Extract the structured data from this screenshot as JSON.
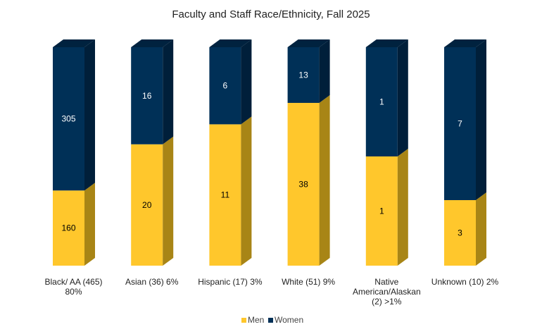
{
  "chart_data": {
    "type": "bar",
    "stacked": "100%",
    "three_d": true,
    "title": "Faculty and Staff Race/Ethnicity, Fall 2025",
    "categories": [
      [
        "Black/ AA (465)",
        "80%"
      ],
      [
        "Asian (36) 6%"
      ],
      [
        "Hispanic (17) 3%"
      ],
      [
        "White (51) 9%"
      ],
      [
        "Native",
        "American/Alaskan",
        "(2) >1%"
      ],
      [
        "Unknown (10) 2%"
      ]
    ],
    "series": [
      {
        "name": "Men",
        "values": [
          160,
          20,
          11,
          38,
          1,
          3
        ],
        "color": "#FFC72C",
        "side_color": "#A88516",
        "label_color": "#000000"
      },
      {
        "name": "Women",
        "values": [
          305,
          16,
          6,
          13,
          1,
          7
        ],
        "color": "#003057",
        "side_color": "#001F3A",
        "top_color": "#00223F",
        "label_color": "#FFFFFF"
      }
    ],
    "grid": false,
    "legend": "bottom"
  }
}
